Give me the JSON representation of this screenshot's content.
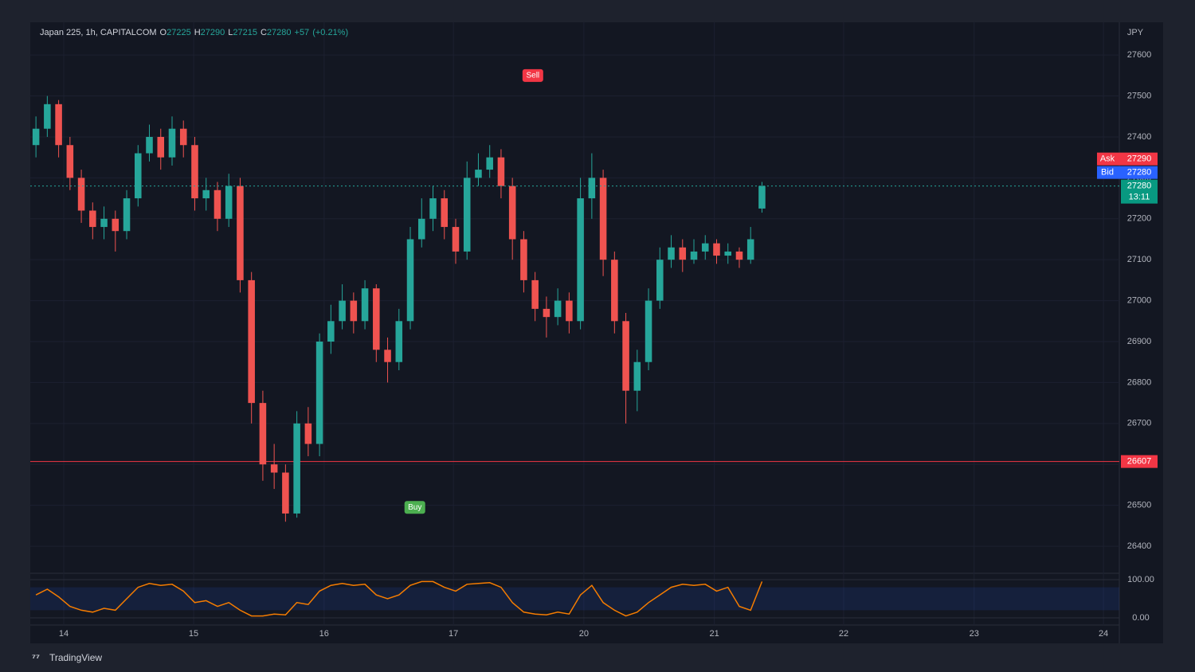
{
  "chart_data": {
    "type": "candlestick",
    "title": "Japan 225, 1h, CAPITALCOM",
    "o_label": "O",
    "h_label": "H",
    "l_label": "L",
    "c_label": "C",
    "change": "+57",
    "change_pct": "(+0.21%)",
    "y_unit": "JPY",
    "up_color": "#26a69a",
    "down_color": "#ef5350",
    "xlim": [
      -0.5,
      95.5
    ],
    "xticks": [
      {
        "value": 2.45,
        "label": "14"
      },
      {
        "value": 13.9,
        "label": "15"
      },
      {
        "value": 25.4,
        "label": "16"
      },
      {
        "value": 36.8,
        "label": "17"
      },
      {
        "value": 48.3,
        "label": "20"
      },
      {
        "value": 59.8,
        "label": "21"
      },
      {
        "value": 71.2,
        "label": "22"
      },
      {
        "value": 82.7,
        "label": "23"
      },
      {
        "value": 94.1,
        "label": "24"
      }
    ],
    "ylim": [
      26334,
      27680
    ],
    "yticks": [
      26400,
      26500,
      26600,
      26700,
      26800,
      26900,
      27000,
      27100,
      27200,
      27300,
      27400,
      27500,
      27600
    ],
    "open": [
      27380,
      27420,
      27480,
      27380,
      27300,
      27220,
      27180,
      27200,
      27170,
      27250,
      27360,
      27400,
      27350,
      27420,
      27380,
      27250,
      27270,
      27200,
      27280,
      27050,
      26750,
      26600,
      26580,
      26480,
      26700,
      26650,
      26900,
      26950,
      27000,
      26950,
      27030,
      26880,
      26850,
      26950,
      27150,
      27200,
      27250,
      27180,
      27120,
      27300,
      27320,
      27350,
      27280,
      27150,
      27050,
      26980,
      26960,
      27000,
      26950,
      27250,
      27300,
      27100,
      26950,
      26780,
      26850,
      27000,
      27100,
      27130,
      27100,
      27120,
      27140,
      27110,
      27120,
      27100,
      27225
    ],
    "high": [
      27450,
      27500,
      27490,
      27400,
      27320,
      27240,
      27230,
      27220,
      27270,
      27380,
      27430,
      27420,
      27450,
      27440,
      27400,
      27300,
      27290,
      27310,
      27300,
      27070,
      26780,
      26650,
      26600,
      26730,
      26740,
      26920,
      26990,
      27040,
      27020,
      27050,
      27040,
      26910,
      26980,
      27180,
      27250,
      27280,
      27270,
      27200,
      27340,
      27360,
      27380,
      27370,
      27300,
      27170,
      27070,
      27010,
      27030,
      27020,
      27300,
      27360,
      27320,
      27120,
      26970,
      26880,
      27030,
      27130,
      27160,
      27150,
      27150,
      27160,
      27150,
      27140,
      27130,
      27180,
      27290
    ],
    "low": [
      27350,
      27400,
      27350,
      27270,
      27190,
      27150,
      27150,
      27120,
      27150,
      27230,
      27340,
      27320,
      27330,
      27350,
      27220,
      27220,
      27170,
      27180,
      27020,
      26700,
      26560,
      26540,
      26460,
      26470,
      26620,
      26620,
      26870,
      26930,
      26920,
      26930,
      26850,
      26800,
      26830,
      26930,
      27130,
      27170,
      27150,
      27090,
      27100,
      27280,
      27300,
      27250,
      27100,
      27020,
      26950,
      26910,
      26940,
      26920,
      26930,
      27200,
      27060,
      26920,
      26700,
      26730,
      26830,
      26980,
      27080,
      27070,
      27090,
      27100,
      27090,
      27090,
      27080,
      27090,
      27215
    ],
    "close": [
      27420,
      27480,
      27380,
      27300,
      27220,
      27180,
      27200,
      27170,
      27250,
      27360,
      27400,
      27350,
      27420,
      27380,
      27250,
      27270,
      27200,
      27280,
      27050,
      26750,
      26600,
      26580,
      26480,
      26700,
      26650,
      26900,
      26950,
      27000,
      26950,
      27030,
      26880,
      26850,
      26950,
      27150,
      27200,
      27250,
      27180,
      27120,
      27300,
      27320,
      27350,
      27280,
      27150,
      27050,
      26980,
      26960,
      27000,
      26950,
      27250,
      27300,
      27100,
      26950,
      26780,
      26850,
      27000,
      27100,
      27130,
      27100,
      27120,
      27140,
      27110,
      27120,
      27100,
      27150,
      27280
    ],
    "annotations": [
      {
        "text": "Sell",
        "x": 43.8,
        "y": 27550,
        "color": "#f23645"
      },
      {
        "text": "Buy",
        "x": 33.4,
        "y": 26495,
        "color": "#4caf50"
      }
    ],
    "level": {
      "value": 26607,
      "color": "#f23645"
    },
    "ask": {
      "label": "Ask",
      "value": 27290,
      "color": "#f23645"
    },
    "bid": {
      "label": "Bid",
      "value": 27280,
      "color": "#2962ff"
    },
    "countdown": "13:11",
    "oscillator": {
      "ylim": [
        0,
        100
      ],
      "yticks": [
        {
          "value": 100,
          "label": "100.00"
        },
        {
          "value": 0,
          "label": "0.00"
        }
      ],
      "color": "#f57c00",
      "values": [
        60,
        75,
        55,
        30,
        20,
        15,
        25,
        20,
        50,
        80,
        90,
        85,
        88,
        70,
        40,
        45,
        30,
        40,
        20,
        5,
        5,
        10,
        8,
        40,
        35,
        70,
        85,
        90,
        85,
        88,
        60,
        50,
        60,
        85,
        95,
        95,
        80,
        70,
        88,
        90,
        92,
        80,
        40,
        15,
        10,
        8,
        15,
        10,
        60,
        85,
        40,
        20,
        5,
        15,
        40,
        60,
        80,
        88,
        85,
        88,
        70,
        80,
        30,
        20,
        95
      ]
    },
    "brand": "TradingView"
  }
}
